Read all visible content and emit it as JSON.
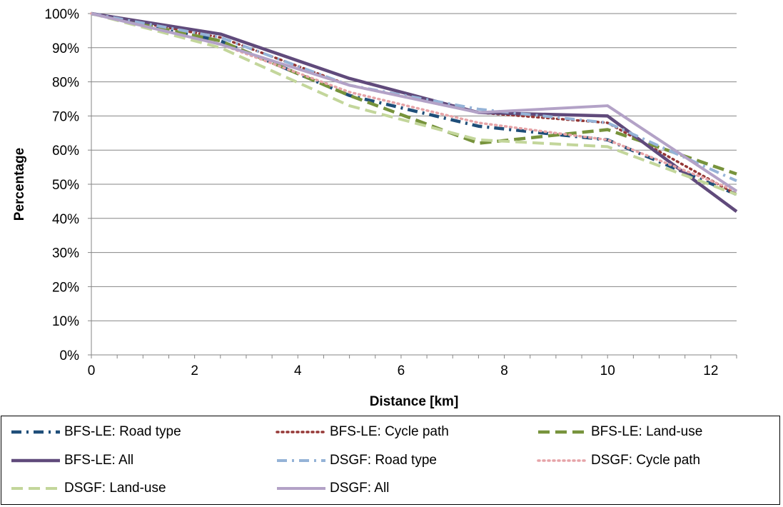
{
  "chart_data": {
    "type": "line",
    "xlabel": "Distance [km]",
    "ylabel": "Percentage",
    "xlim": [
      0,
      12.5
    ],
    "ylim": [
      0,
      100
    ],
    "x_ticks": [
      0,
      2,
      4,
      6,
      8,
      10,
      12
    ],
    "x_tick_labels": [
      "0",
      "2",
      "4",
      "6",
      "8",
      "10",
      "12"
    ],
    "y_ticks": [
      0,
      10,
      20,
      30,
      40,
      50,
      60,
      70,
      80,
      90,
      100
    ],
    "y_tick_labels": [
      "0%",
      "10%",
      "20%",
      "30%",
      "40%",
      "50%",
      "60%",
      "70%",
      "80%",
      "90%",
      "100%"
    ],
    "grid": "horizontal",
    "legend_position": "bottom",
    "series": [
      {
        "name": "BFS-LE: Road type",
        "color": "#1f4e79",
        "style": "dash-dot",
        "x": [
          0,
          2.5,
          5,
          7.5,
          10,
          12.5
        ],
        "y": [
          100,
          92,
          76,
          67,
          63,
          47
        ]
      },
      {
        "name": "BFS-LE: Cycle path",
        "color": "#953735",
        "style": "dot",
        "x": [
          0,
          2.5,
          5,
          7.5,
          10,
          12.5
        ],
        "y": [
          100,
          93,
          79,
          71,
          68,
          47
        ]
      },
      {
        "name": "BFS-LE: Land-use",
        "color": "#77933c",
        "style": "dash",
        "x": [
          0,
          2.5,
          5,
          7.5,
          10,
          12.5
        ],
        "y": [
          100,
          92,
          76,
          62,
          66,
          53
        ]
      },
      {
        "name": "BFS-LE: All",
        "color": "#604a7b",
        "style": "solid",
        "x": [
          0,
          2.5,
          5,
          7.5,
          10,
          12.5
        ],
        "y": [
          100,
          94,
          81,
          71,
          70,
          42
        ]
      },
      {
        "name": "DSGF: Road type",
        "color": "#95b3d7",
        "style": "dash-dot",
        "x": [
          0,
          2.5,
          5,
          7.5,
          10,
          12.5
        ],
        "y": [
          100,
          93,
          79,
          72,
          68,
          51
        ]
      },
      {
        "name": "DSGF: Cycle path",
        "color": "#e6a4a8",
        "style": "dot",
        "x": [
          0,
          2.5,
          5,
          7.5,
          10,
          12.5
        ],
        "y": [
          100,
          91,
          77,
          68,
          63,
          48
        ]
      },
      {
        "name": "DSGF: Land-use",
        "color": "#c3d69b",
        "style": "dash",
        "x": [
          0,
          2.5,
          5,
          7.5,
          10,
          12.5
        ],
        "y": [
          100,
          90,
          73,
          63,
          61,
          47
        ]
      },
      {
        "name": "DSGF: All",
        "color": "#b3a2c7",
        "style": "solid",
        "x": [
          0,
          2.5,
          5,
          7.5,
          10,
          12.5
        ],
        "y": [
          100,
          91,
          79,
          71,
          73,
          48
        ]
      }
    ]
  }
}
